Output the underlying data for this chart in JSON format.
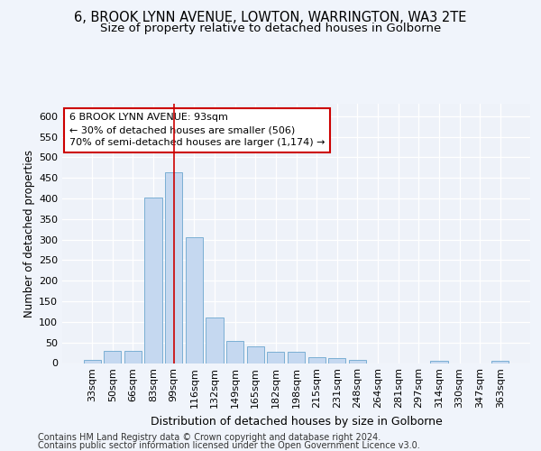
{
  "title1": "6, BROOK LYNN AVENUE, LOWTON, WARRINGTON, WA3 2TE",
  "title2": "Size of property relative to detached houses in Golborne",
  "xlabel": "Distribution of detached houses by size in Golborne",
  "ylabel": "Number of detached properties",
  "categories": [
    "33sqm",
    "50sqm",
    "66sqm",
    "83sqm",
    "99sqm",
    "116sqm",
    "132sqm",
    "149sqm",
    "165sqm",
    "182sqm",
    "198sqm",
    "215sqm",
    "231sqm",
    "248sqm",
    "264sqm",
    "281sqm",
    "297sqm",
    "314sqm",
    "330sqm",
    "347sqm",
    "363sqm"
  ],
  "values": [
    7,
    30,
    30,
    403,
    463,
    305,
    110,
    54,
    40,
    27,
    27,
    14,
    12,
    7,
    0,
    0,
    0,
    5,
    0,
    0,
    5
  ],
  "bar_color": "#c5d8f0",
  "bar_edge_color": "#7bafd4",
  "vline_x": 4,
  "vline_color": "#cc0000",
  "annotation_line1": "6 BROOK LYNN AVENUE: 93sqm",
  "annotation_line2": "← 30% of detached houses are smaller (506)",
  "annotation_line3": "70% of semi-detached houses are larger (1,174) →",
  "footer1": "Contains HM Land Registry data © Crown copyright and database right 2024.",
  "footer2": "Contains public sector information licensed under the Open Government Licence v3.0.",
  "ylim": [
    0,
    630
  ],
  "yticks": [
    0,
    50,
    100,
    150,
    200,
    250,
    300,
    350,
    400,
    450,
    500,
    550,
    600
  ],
  "bg_color": "#f0f4fb",
  "plot_bg_color": "#eef2f9",
  "title1_fontsize": 10.5,
  "title2_fontsize": 9.5,
  "xlabel_fontsize": 9,
  "ylabel_fontsize": 8.5,
  "tick_fontsize": 8,
  "annotation_fontsize": 8,
  "footer_fontsize": 7
}
